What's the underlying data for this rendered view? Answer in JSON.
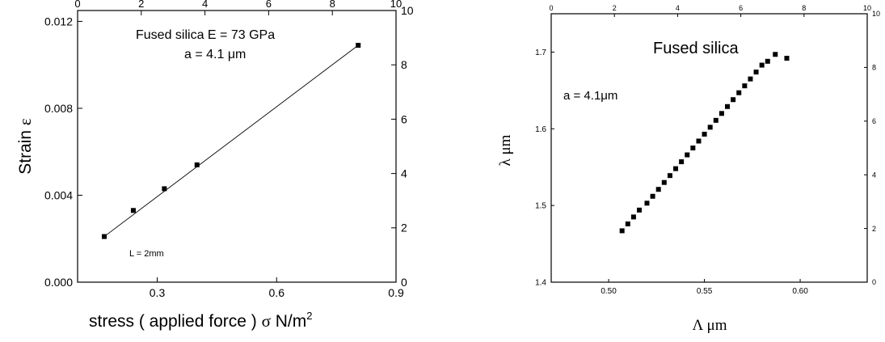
{
  "chart_data": [
    {
      "type": "scatter",
      "title": "",
      "annotations": [
        "Fused silica  E = 73 GPa",
        "a = 4.1 μm",
        "L = 2mm"
      ],
      "xlabel_parts": [
        "stress ( applied force ) ",
        "σ",
        " N/m",
        "2"
      ],
      "ylabel_parts": [
        "Strain  ",
        "ε"
      ],
      "xlim": [
        0.1,
        0.9
      ],
      "ylim": [
        0.0,
        0.0125
      ],
      "x_ticks": [
        0.3,
        0.6,
        0.9
      ],
      "y_ticks": [
        0.0,
        0.004,
        0.008,
        0.012
      ],
      "x_tick_labels": [
        "0.3",
        "0.6",
        "0.9"
      ],
      "y_tick_labels": [
        "0.000",
        "0.004",
        "0.008",
        "0.012"
      ],
      "top_axis": {
        "lim": [
          0,
          10
        ],
        "ticks": [
          0,
          2,
          4,
          6,
          8,
          10
        ],
        "labels": [
          "0",
          "2",
          "4",
          "6",
          "8",
          "10"
        ]
      },
      "right_axis": {
        "lim": [
          0,
          10
        ],
        "ticks": [
          0,
          2,
          4,
          6,
          8,
          10
        ],
        "labels": [
          "0",
          "2",
          "4",
          "6",
          "8",
          "10"
        ]
      },
      "series": [
        {
          "x": [
            0.167,
            0.24,
            0.318,
            0.4,
            0.805
          ],
          "y": [
            0.0021,
            0.0033,
            0.0043,
            0.0054,
            0.0109
          ]
        }
      ],
      "fit_line": {
        "x": [
          0.167,
          0.805
        ],
        "y": [
          0.0021,
          0.0109
        ]
      },
      "grid": false
    },
    {
      "type": "scatter",
      "title": "",
      "annotations": [
        "Fused silica",
        "a = 4.1μm"
      ],
      "xlabel": "Λ μm",
      "ylabel": "λ μm",
      "xlim": [
        0.47,
        0.635
      ],
      "ylim": [
        1.4,
        1.75
      ],
      "x_ticks": [
        0.5,
        0.55,
        0.6
      ],
      "y_ticks": [
        1.4,
        1.5,
        1.6,
        1.7
      ],
      "x_tick_labels": [
        "0.50",
        "0.55",
        "0.60"
      ],
      "y_tick_labels": [
        "1.4",
        "1.5",
        "1.6",
        "1.7"
      ],
      "top_axis": {
        "lim": [
          0,
          10
        ],
        "ticks": [
          0,
          2,
          4,
          6,
          8,
          10
        ],
        "labels": [
          "0",
          "2",
          "4",
          "6",
          "8",
          "10"
        ]
      },
      "right_axis": {
        "lim": [
          0,
          10
        ],
        "ticks": [
          0,
          2,
          4,
          6,
          8,
          10
        ],
        "labels": [
          "0",
          "2",
          "4",
          "6",
          "8",
          "10"
        ]
      },
      "series": [
        {
          "x": [
            0.507,
            0.51,
            0.513,
            0.516,
            0.52,
            0.523,
            0.526,
            0.529,
            0.532,
            0.535,
            0.538,
            0.541,
            0.544,
            0.547,
            0.55,
            0.553,
            0.556,
            0.559,
            0.562,
            0.565,
            0.568,
            0.571,
            0.574,
            0.577,
            0.58,
            0.583,
            0.587,
            0.593
          ],
          "y": [
            1.467,
            1.476,
            1.485,
            1.494,
            1.503,
            1.512,
            1.521,
            1.53,
            1.539,
            1.548,
            1.557,
            1.566,
            1.575,
            1.584,
            1.593,
            1.602,
            1.611,
            1.62,
            1.629,
            1.638,
            1.647,
            1.656,
            1.665,
            1.674,
            1.683,
            1.688,
            1.697,
            1.692
          ]
        }
      ],
      "grid": false
    }
  ]
}
